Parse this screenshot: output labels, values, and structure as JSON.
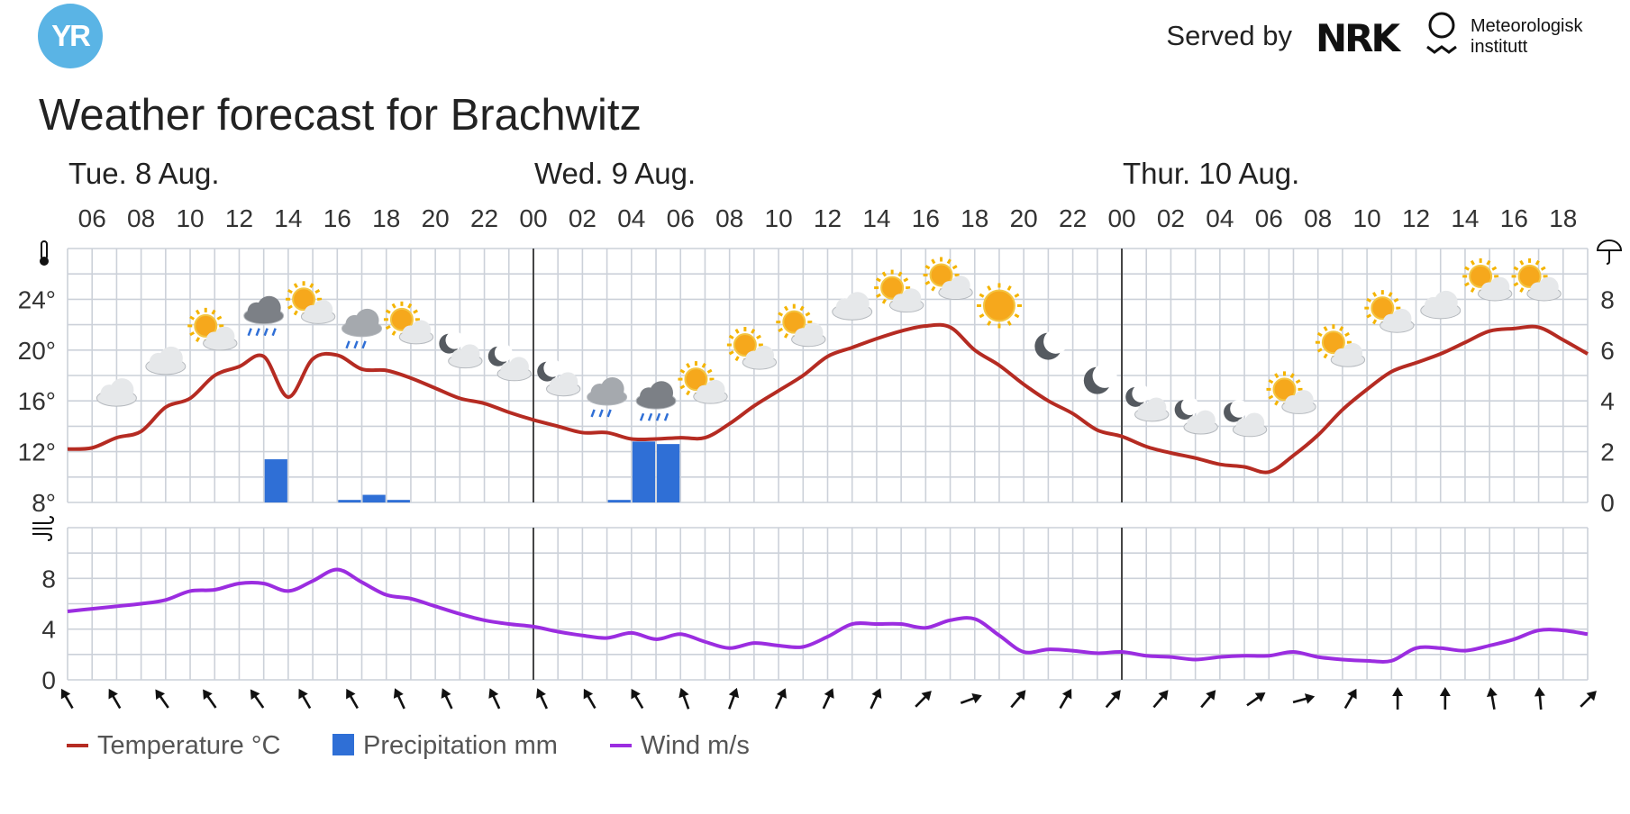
{
  "header": {
    "logo_text": "YR",
    "served_by": "Served by",
    "nrk_logo_text": "NRK",
    "met_line1": "Meteorologisk",
    "met_line2": "institutt"
  },
  "title": "Weather forecast for Brachwitz",
  "colors": {
    "temperature": "#b52b22",
    "precipitation": "#2f6fd6",
    "wind": "#9b2de0",
    "grid": "#ccd1d9",
    "midnight": "#444444",
    "logo": "#5ab4e5"
  },
  "chart_data": {
    "type": "line",
    "days": [
      {
        "label": "Tue. 8 Aug.",
        "hour": 5
      },
      {
        "label": "Wed. 9 Aug.",
        "hour": 24
      },
      {
        "label": "Thur. 10 Aug.",
        "hour": 48
      }
    ],
    "x_range_hours": [
      5,
      67
    ],
    "hour_ticks": [
      "06",
      "08",
      "10",
      "12",
      "14",
      "16",
      "18",
      "20",
      "22",
      "00",
      "02",
      "04",
      "06",
      "08",
      "10",
      "12",
      "14",
      "16",
      "18",
      "20",
      "22",
      "00",
      "02",
      "04",
      "06",
      "08",
      "10",
      "12",
      "14",
      "16",
      "18"
    ],
    "hour_tick_positions": [
      6,
      8,
      10,
      12,
      14,
      16,
      18,
      20,
      22,
      24,
      26,
      28,
      30,
      32,
      34,
      36,
      38,
      40,
      42,
      44,
      46,
      48,
      50,
      52,
      54,
      56,
      58,
      60,
      62,
      64,
      66
    ],
    "temperature": {
      "name": "Temperature °C",
      "ylim": [
        8,
        28
      ],
      "y_ticks": [
        "24°",
        "20°",
        "16°",
        "12°",
        "8°"
      ],
      "y_tick_values": [
        24,
        20,
        16,
        12,
        8
      ],
      "points": [
        [
          5,
          12.2
        ],
        [
          6,
          12.3
        ],
        [
          7,
          13.1
        ],
        [
          8,
          13.6
        ],
        [
          9,
          15.5
        ],
        [
          10,
          16.2
        ],
        [
          11,
          18
        ],
        [
          12,
          18.7
        ],
        [
          13,
          19.5
        ],
        [
          14,
          16.3
        ],
        [
          15,
          19.3
        ],
        [
          16,
          19.6
        ],
        [
          17,
          18.5
        ],
        [
          18,
          18.4
        ],
        [
          19,
          17.8
        ],
        [
          20,
          17
        ],
        [
          21,
          16.2
        ],
        [
          22,
          15.8
        ],
        [
          23,
          15.1
        ],
        [
          24,
          14.5
        ],
        [
          25,
          14
        ],
        [
          26,
          13.5
        ],
        [
          27,
          13.5
        ],
        [
          28,
          13
        ],
        [
          29,
          13
        ],
        [
          30,
          13.1
        ],
        [
          31,
          13.1
        ],
        [
          32,
          14.2
        ],
        [
          33,
          15.6
        ],
        [
          34,
          16.8
        ],
        [
          35,
          18
        ],
        [
          36,
          19.5
        ],
        [
          37,
          20.2
        ],
        [
          38,
          20.9
        ],
        [
          39,
          21.5
        ],
        [
          40,
          21.9
        ],
        [
          41,
          21.8
        ],
        [
          42,
          20
        ],
        [
          43,
          18.8
        ],
        [
          44,
          17.3
        ],
        [
          45,
          16
        ],
        [
          46,
          15
        ],
        [
          47,
          13.7
        ],
        [
          48,
          13.2
        ],
        [
          49,
          12.4
        ],
        [
          50,
          11.9
        ],
        [
          51,
          11.5
        ],
        [
          52,
          11
        ],
        [
          53,
          10.8
        ],
        [
          54,
          10.4
        ],
        [
          55,
          11.7
        ],
        [
          56,
          13.3
        ],
        [
          57,
          15.3
        ],
        [
          58,
          16.9
        ],
        [
          59,
          18.3
        ],
        [
          60,
          19
        ],
        [
          61,
          19.7
        ],
        [
          62,
          20.6
        ],
        [
          63,
          21.5
        ],
        [
          64,
          21.7
        ],
        [
          65,
          21.8
        ],
        [
          66,
          20.8
        ],
        [
          67,
          19.7
        ]
      ]
    },
    "precipitation": {
      "name": "Precipitation mm",
      "ylim": [
        0,
        10
      ],
      "y_ticks": [
        "8",
        "6",
        "4",
        "2",
        "0"
      ],
      "y_tick_values": [
        8,
        6,
        4,
        2,
        0
      ],
      "bars": [
        [
          13.5,
          1.7
        ],
        [
          16.5,
          0.1
        ],
        [
          17.5,
          0.3
        ],
        [
          18.5,
          0.1
        ],
        [
          27.5,
          0.1
        ],
        [
          28.5,
          2.4
        ],
        [
          29.5,
          2.3
        ]
      ]
    },
    "wind": {
      "name": "Wind m/s",
      "ylim": [
        0,
        12
      ],
      "y_ticks": [
        "8",
        "4",
        "0"
      ],
      "y_tick_values": [
        8,
        4,
        0
      ],
      "points": [
        [
          5,
          5.4
        ],
        [
          6,
          5.6
        ],
        [
          7,
          5.8
        ],
        [
          8,
          6.0
        ],
        [
          9,
          6.3
        ],
        [
          10,
          7
        ],
        [
          11,
          7.1
        ],
        [
          12,
          7.6
        ],
        [
          13,
          7.6
        ],
        [
          14,
          7
        ],
        [
          15,
          7.8
        ],
        [
          16,
          8.7
        ],
        [
          17,
          7.7
        ],
        [
          18,
          6.7
        ],
        [
          19,
          6.4
        ],
        [
          20,
          5.8
        ],
        [
          21,
          5.2
        ],
        [
          22,
          4.7
        ],
        [
          23,
          4.4
        ],
        [
          24,
          4.2
        ],
        [
          25,
          3.8
        ],
        [
          26,
          3.5
        ],
        [
          27,
          3.3
        ],
        [
          28,
          3.7
        ],
        [
          29,
          3.2
        ],
        [
          30,
          3.6
        ],
        [
          31,
          3
        ],
        [
          32,
          2.5
        ],
        [
          33,
          2.9
        ],
        [
          34,
          2.7
        ],
        [
          35,
          2.6
        ],
        [
          36,
          3.4
        ],
        [
          37,
          4.4
        ],
        [
          38,
          4.4
        ],
        [
          39,
          4.4
        ],
        [
          40,
          4.1
        ],
        [
          41,
          4.7
        ],
        [
          42,
          4.8
        ],
        [
          43,
          3.5
        ],
        [
          44,
          2.2
        ],
        [
          45,
          2.4
        ],
        [
          46,
          2.3
        ],
        [
          47,
          2.1
        ],
        [
          48,
          2.2
        ],
        [
          49,
          1.9
        ],
        [
          50,
          1.8
        ],
        [
          51,
          1.6
        ],
        [
          52,
          1.8
        ],
        [
          53,
          1.9
        ],
        [
          54,
          1.9
        ],
        [
          55,
          2.2
        ],
        [
          56,
          1.8
        ],
        [
          57,
          1.6
        ],
        [
          58,
          1.5
        ],
        [
          59,
          1.5
        ],
        [
          60,
          2.5
        ],
        [
          61,
          2.5
        ],
        [
          62,
          2.3
        ],
        [
          63,
          2.7
        ],
        [
          64,
          3.2
        ],
        [
          65,
          3.9
        ],
        [
          66,
          3.9
        ],
        [
          67,
          3.6
        ]
      ]
    },
    "wind_directions_deg": [
      60,
      60,
      55,
      55,
      55,
      60,
      60,
      65,
      65,
      65,
      65,
      60,
      60,
      70,
      110,
      115,
      115,
      115,
      135,
      160,
      130,
      120,
      130,
      130,
      130,
      145,
      165,
      120,
      90,
      90,
      80,
      85,
      135
    ],
    "weather_symbols": [
      {
        "hour": 7,
        "icon": "cloud-icon",
        "temp": 16.5
      },
      {
        "hour": 9,
        "icon": "cloud-icon",
        "temp": 19
      },
      {
        "hour": 11,
        "icon": "partly-sunny-icon",
        "temp": 21.2
      },
      {
        "hour": 13,
        "icon": "heavy-rain-icon",
        "temp": 22.7
      },
      {
        "hour": 15,
        "icon": "partly-sunny-icon",
        "temp": 23.3
      },
      {
        "hour": 17,
        "icon": "light-rain-icon",
        "temp": 21.7
      },
      {
        "hour": 19,
        "icon": "partly-sunny-icon",
        "temp": 21.7
      },
      {
        "hour": 21,
        "icon": "partly-moon-icon",
        "temp": 19.8
      },
      {
        "hour": 23,
        "icon": "partly-moon-icon",
        "temp": 18.8
      },
      {
        "hour": 25,
        "icon": "partly-moon-icon",
        "temp": 17.6
      },
      {
        "hour": 27,
        "icon": "light-rain-icon",
        "temp": 16.3
      },
      {
        "hour": 29,
        "icon": "heavy-rain-icon",
        "temp": 16
      },
      {
        "hour": 31,
        "icon": "partly-sunny-icon",
        "temp": 17
      },
      {
        "hour": 33,
        "icon": "partly-sunny-icon",
        "temp": 19.7
      },
      {
        "hour": 35,
        "icon": "partly-sunny-icon",
        "temp": 21.5
      },
      {
        "hour": 37,
        "icon": "cloud-icon",
        "temp": 23.3
      },
      {
        "hour": 39,
        "icon": "partly-sunny-icon",
        "temp": 24.2
      },
      {
        "hour": 41,
        "icon": "partly-sunny-icon",
        "temp": 25.2
      },
      {
        "hour": 43,
        "icon": "sun-icon",
        "temp": 23.5
      },
      {
        "hour": 45,
        "icon": "moon-icon",
        "temp": 20.3
      },
      {
        "hour": 47,
        "icon": "moon-icon",
        "temp": 17.6
      },
      {
        "hour": 49,
        "icon": "partly-moon-icon",
        "temp": 15.6
      },
      {
        "hour": 51,
        "icon": "partly-moon-icon",
        "temp": 14.6
      },
      {
        "hour": 53,
        "icon": "partly-moon-icon",
        "temp": 14.4
      },
      {
        "hour": 55,
        "icon": "partly-sunny-icon",
        "temp": 16.2
      },
      {
        "hour": 57,
        "icon": "partly-sunny-icon",
        "temp": 19.9
      },
      {
        "hour": 59,
        "icon": "partly-sunny-icon",
        "temp": 22.6
      },
      {
        "hour": 61,
        "icon": "cloud-icon",
        "temp": 23.4
      },
      {
        "hour": 63,
        "icon": "partly-sunny-icon",
        "temp": 25.1
      },
      {
        "hour": 65,
        "icon": "partly-sunny-icon",
        "temp": 25.1
      }
    ]
  },
  "legend": {
    "temperature": "Temperature °C",
    "precipitation": "Precipitation mm",
    "wind": "Wind m/s"
  }
}
